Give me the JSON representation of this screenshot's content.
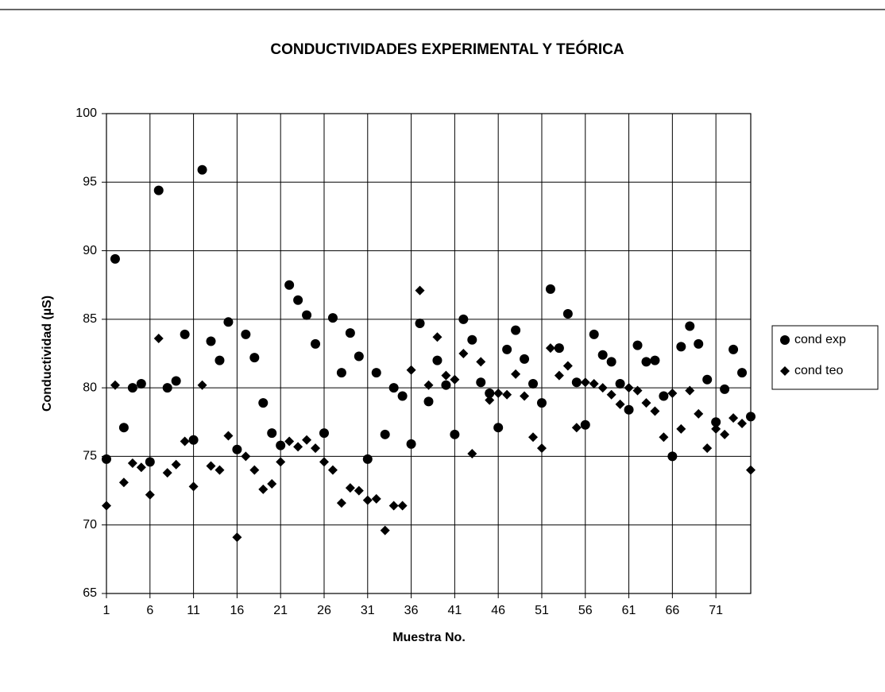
{
  "chart_data": {
    "type": "scatter",
    "title": "CONDUCTIVIDADES EXPERIMENTAL Y TEÓRICA",
    "xlabel": "Muestra No.",
    "ylabel": "Conductividad (µS)",
    "x": [
      1,
      2,
      3,
      4,
      5,
      6,
      7,
      8,
      9,
      10,
      11,
      12,
      13,
      14,
      15,
      16,
      17,
      18,
      19,
      20,
      21,
      22,
      23,
      24,
      25,
      26,
      27,
      28,
      29,
      30,
      31,
      32,
      33,
      34,
      35,
      36,
      37,
      38,
      39,
      40,
      41,
      42,
      43,
      44,
      45,
      46,
      47,
      48,
      49,
      50,
      51,
      52,
      53,
      54,
      55,
      56,
      57,
      58,
      59,
      60,
      61,
      62,
      63,
      64,
      65,
      66,
      67,
      68,
      69,
      70,
      71,
      72,
      73,
      74,
      75
    ],
    "series": [
      {
        "name": "cond exp",
        "color": "#000000",
        "marker": "circle",
        "values": [
          74.8,
          89.4,
          77.1,
          80.0,
          80.3,
          74.6,
          94.4,
          80.0,
          80.5,
          83.9,
          76.2,
          95.9,
          83.4,
          82.0,
          84.8,
          75.5,
          83.9,
          82.2,
          78.9,
          76.7,
          75.8,
          87.5,
          86.4,
          85.3,
          83.2,
          76.7,
          85.1,
          81.1,
          84.0,
          82.3,
          74.8,
          81.1,
          76.6,
          80.0,
          79.4,
          75.9,
          84.7,
          79.0,
          82.0,
          80.2,
          76.6,
          85.0,
          83.5,
          80.4,
          79.6,
          77.1,
          82.8,
          84.2,
          82.1,
          80.3,
          78.9,
          87.2,
          82.9,
          85.4,
          80.4,
          77.3,
          83.9,
          82.4,
          81.9,
          80.3,
          78.4,
          83.1,
          81.9,
          82.0,
          79.4,
          75.0,
          83.0,
          84.5,
          83.2,
          80.6,
          77.5,
          79.9,
          82.8,
          81.1,
          77.9
        ]
      },
      {
        "name": "cond teo",
        "color": "#000000",
        "marker": "diamond",
        "values": [
          71.4,
          80.2,
          73.1,
          74.5,
          74.2,
          72.2,
          83.6,
          73.8,
          74.4,
          76.1,
          72.8,
          80.2,
          74.3,
          74.0,
          76.5,
          69.1,
          75.0,
          74.0,
          72.6,
          73.0,
          74.6,
          76.1,
          75.7,
          76.2,
          75.6,
          74.6,
          74.0,
          71.6,
          72.7,
          72.5,
          71.8,
          71.9,
          69.6,
          71.4,
          71.4,
          81.3,
          87.1,
          80.2,
          83.7,
          80.9,
          80.6,
          82.5,
          75.2,
          81.9,
          79.1,
          79.6,
          79.5,
          81.0,
          79.4,
          76.4,
          75.6,
          82.9,
          80.9,
          81.6,
          77.1,
          80.4,
          80.3,
          80.0,
          79.5,
          78.8,
          80.0,
          79.8,
          78.9,
          78.3,
          76.4,
          79.6,
          77.0,
          79.8,
          78.1,
          75.6,
          77.0,
          76.6,
          77.8,
          77.4,
          74.0
        ]
      }
    ],
    "xlim": [
      1,
      75
    ],
    "xticks": [
      1,
      6,
      11,
      16,
      21,
      26,
      31,
      36,
      41,
      46,
      51,
      56,
      61,
      66,
      71
    ],
    "ylim": [
      65,
      100
    ],
    "yticks": [
      65,
      70,
      75,
      80,
      85,
      90,
      95,
      100
    ],
    "grid": true,
    "legend": "right"
  }
}
